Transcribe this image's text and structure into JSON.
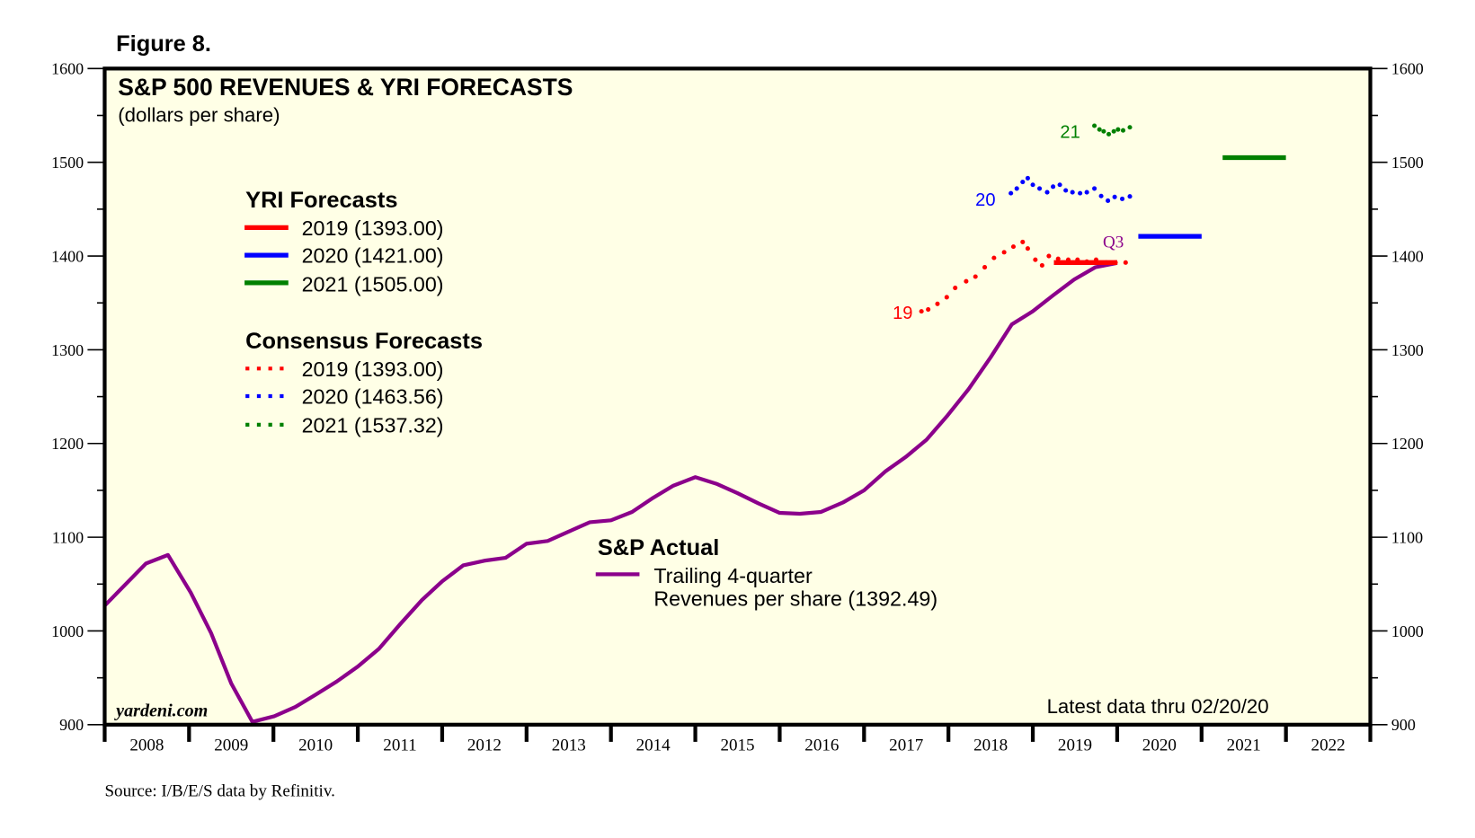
{
  "figure_label": "Figure 8.",
  "source": "Source: I/B/E/S data by Refinitiv.",
  "watermark": "yardeni.com",
  "latest_data": "Latest data thru 02/20/20",
  "chart_data": {
    "type": "line",
    "title": "S&P 500 REVENUES & YRI FORECASTS",
    "subtitle": "(dollars per share)",
    "xlabel": "",
    "ylabel": "dollars per share",
    "xlim": [
      2008,
      2023
    ],
    "ylim": [
      900,
      1600
    ],
    "y_ticks": [
      900,
      1000,
      1100,
      1200,
      1300,
      1400,
      1500,
      1600
    ],
    "y_minor_ticks": [
      950,
      1050,
      1150,
      1250,
      1350,
      1450,
      1550
    ],
    "x_tick_labels": [
      "2008",
      "2009",
      "2010",
      "2011",
      "2012",
      "2013",
      "2014",
      "2015",
      "2016",
      "2017",
      "2018",
      "2019",
      "2020",
      "2021",
      "2022"
    ],
    "grid": false,
    "dual_y_axis": true,
    "background_color": "#ffffe6",
    "legend_groups": [
      {
        "title": "YRI Forecasts",
        "placement": "upper-left",
        "entries": [
          {
            "label": "2019 (1393.00)",
            "color": "#ff0000",
            "style": "solid"
          },
          {
            "label": "2020 (1421.00)",
            "color": "#0000ff",
            "style": "solid"
          },
          {
            "label": "2021 (1505.00)",
            "color": "#008000",
            "style": "solid"
          }
        ]
      },
      {
        "title": "Consensus Forecasts",
        "placement": "upper-left",
        "entries": [
          {
            "label": "2019 (1393.00)",
            "color": "#ff0000",
            "style": "dotted"
          },
          {
            "label": "2020 (1463.56)",
            "color": "#0000ff",
            "style": "dotted"
          },
          {
            "label": "2021 (1537.32)",
            "color": "#008000",
            "style": "dotted"
          }
        ]
      },
      {
        "title": "S&P Actual",
        "placement": "center",
        "entries": [
          {
            "label_lines": [
              "Trailing 4-quarter",
              "Revenues per share (1392.49)"
            ],
            "color": "#8b008b",
            "style": "solid"
          }
        ]
      }
    ],
    "annotations": [
      {
        "text": "19",
        "color": "#ff0000",
        "series": "consensus_2019"
      },
      {
        "text": "20",
        "color": "#0000ff",
        "series": "consensus_2020"
      },
      {
        "text": "21",
        "color": "#008000",
        "series": "consensus_2021"
      },
      {
        "text": "Q3",
        "color": "#8b008b",
        "series": "actual"
      }
    ],
    "series": [
      {
        "name": "S&P Actual trailing 4-quarter revenues per share",
        "key": "actual",
        "color": "#8b008b",
        "style": "solid",
        "points": [
          [
            2008.0,
            1027
          ],
          [
            2008.49,
            1072
          ],
          [
            2008.75,
            1081
          ],
          [
            2009.02,
            1041
          ],
          [
            2009.26,
            998
          ],
          [
            2009.5,
            944
          ],
          [
            2009.75,
            903
          ],
          [
            2010.01,
            909
          ],
          [
            2010.26,
            919
          ],
          [
            2010.5,
            932
          ],
          [
            2010.75,
            946
          ],
          [
            2011.0,
            962
          ],
          [
            2011.25,
            981
          ],
          [
            2011.5,
            1007
          ],
          [
            2011.76,
            1033
          ],
          [
            2012.0,
            1053
          ],
          [
            2012.25,
            1070
          ],
          [
            2012.5,
            1075
          ],
          [
            2012.75,
            1078
          ],
          [
            2013.0,
            1093
          ],
          [
            2013.25,
            1096
          ],
          [
            2013.5,
            1106
          ],
          [
            2013.75,
            1116
          ],
          [
            2014.0,
            1118
          ],
          [
            2014.25,
            1127
          ],
          [
            2014.5,
            1142
          ],
          [
            2014.74,
            1155
          ],
          [
            2015.0,
            1164
          ],
          [
            2015.25,
            1157
          ],
          [
            2015.5,
            1147
          ],
          [
            2015.75,
            1136
          ],
          [
            2016.0,
            1126
          ],
          [
            2016.24,
            1125
          ],
          [
            2016.49,
            1127
          ],
          [
            2016.75,
            1137
          ],
          [
            2017.0,
            1150
          ],
          [
            2017.25,
            1170
          ],
          [
            2017.5,
            1186
          ],
          [
            2017.74,
            1204
          ],
          [
            2017.99,
            1230
          ],
          [
            2018.24,
            1258
          ],
          [
            2018.5,
            1292
          ],
          [
            2018.75,
            1327
          ],
          [
            2019.0,
            1341
          ],
          [
            2019.24,
            1358
          ],
          [
            2019.49,
            1375
          ],
          [
            2019.74,
            1388
          ],
          [
            2020.0,
            1392.49
          ]
        ]
      },
      {
        "name": "YRI Forecast 2019",
        "key": "yri_2019",
        "color": "#ff0000",
        "style": "solid",
        "points": [
          [
            2019.25,
            1393
          ],
          [
            2020.0,
            1393
          ]
        ]
      },
      {
        "name": "YRI Forecast 2020",
        "key": "yri_2020",
        "color": "#0000ff",
        "style": "solid",
        "points": [
          [
            2020.25,
            1421
          ],
          [
            2021.0,
            1421
          ]
        ]
      },
      {
        "name": "YRI Forecast 2021",
        "key": "yri_2021",
        "color": "#008000",
        "style": "solid",
        "points": [
          [
            2021.25,
            1505
          ],
          [
            2022.0,
            1505
          ]
        ]
      },
      {
        "name": "Consensus Forecast 2019",
        "key": "consensus_2019",
        "color": "#ff0000",
        "style": "dotted",
        "points": [
          [
            2017.68,
            1341
          ],
          [
            2017.76,
            1343
          ],
          [
            2017.87,
            1349
          ],
          [
            2017.98,
            1356
          ],
          [
            2018.08,
            1366
          ],
          [
            2018.21,
            1373
          ],
          [
            2018.32,
            1378
          ],
          [
            2018.43,
            1388
          ],
          [
            2018.54,
            1398
          ],
          [
            2018.66,
            1404
          ],
          [
            2018.77,
            1410
          ],
          [
            2018.88,
            1415
          ],
          [
            2018.94,
            1408
          ],
          [
            2019.03,
            1396
          ],
          [
            2019.11,
            1390
          ],
          [
            2019.19,
            1400
          ],
          [
            2019.3,
            1397
          ],
          [
            2019.42,
            1396
          ],
          [
            2019.53,
            1396
          ],
          [
            2019.64,
            1394
          ],
          [
            2019.75,
            1396
          ],
          [
            2019.87,
            1393
          ],
          [
            2019.98,
            1393
          ],
          [
            2020.1,
            1393
          ]
        ]
      },
      {
        "name": "Consensus Forecast 2020",
        "key": "consensus_2020",
        "color": "#0000ff",
        "style": "dotted",
        "points": [
          [
            2018.74,
            1467
          ],
          [
            2018.81,
            1472
          ],
          [
            2018.88,
            1479
          ],
          [
            2018.94,
            1483
          ],
          [
            2019.0,
            1476
          ],
          [
            2019.08,
            1472
          ],
          [
            2019.17,
            1468
          ],
          [
            2019.24,
            1474
          ],
          [
            2019.32,
            1476
          ],
          [
            2019.39,
            1470
          ],
          [
            2019.47,
            1468
          ],
          [
            2019.56,
            1467
          ],
          [
            2019.64,
            1468
          ],
          [
            2019.73,
            1472
          ],
          [
            2019.81,
            1464
          ],
          [
            2019.89,
            1459
          ],
          [
            2019.97,
            1463
          ],
          [
            2020.06,
            1461
          ],
          [
            2020.15,
            1463.56
          ]
        ]
      },
      {
        "name": "Consensus Forecast 2021",
        "key": "consensus_2021",
        "color": "#008000",
        "style": "dotted",
        "points": [
          [
            2019.73,
            1539
          ],
          [
            2019.79,
            1535
          ],
          [
            2019.84,
            1533
          ],
          [
            2019.9,
            1530
          ],
          [
            2019.96,
            1533
          ],
          [
            2020.01,
            1535
          ],
          [
            2020.07,
            1534
          ],
          [
            2020.15,
            1537.32
          ]
        ]
      }
    ]
  }
}
